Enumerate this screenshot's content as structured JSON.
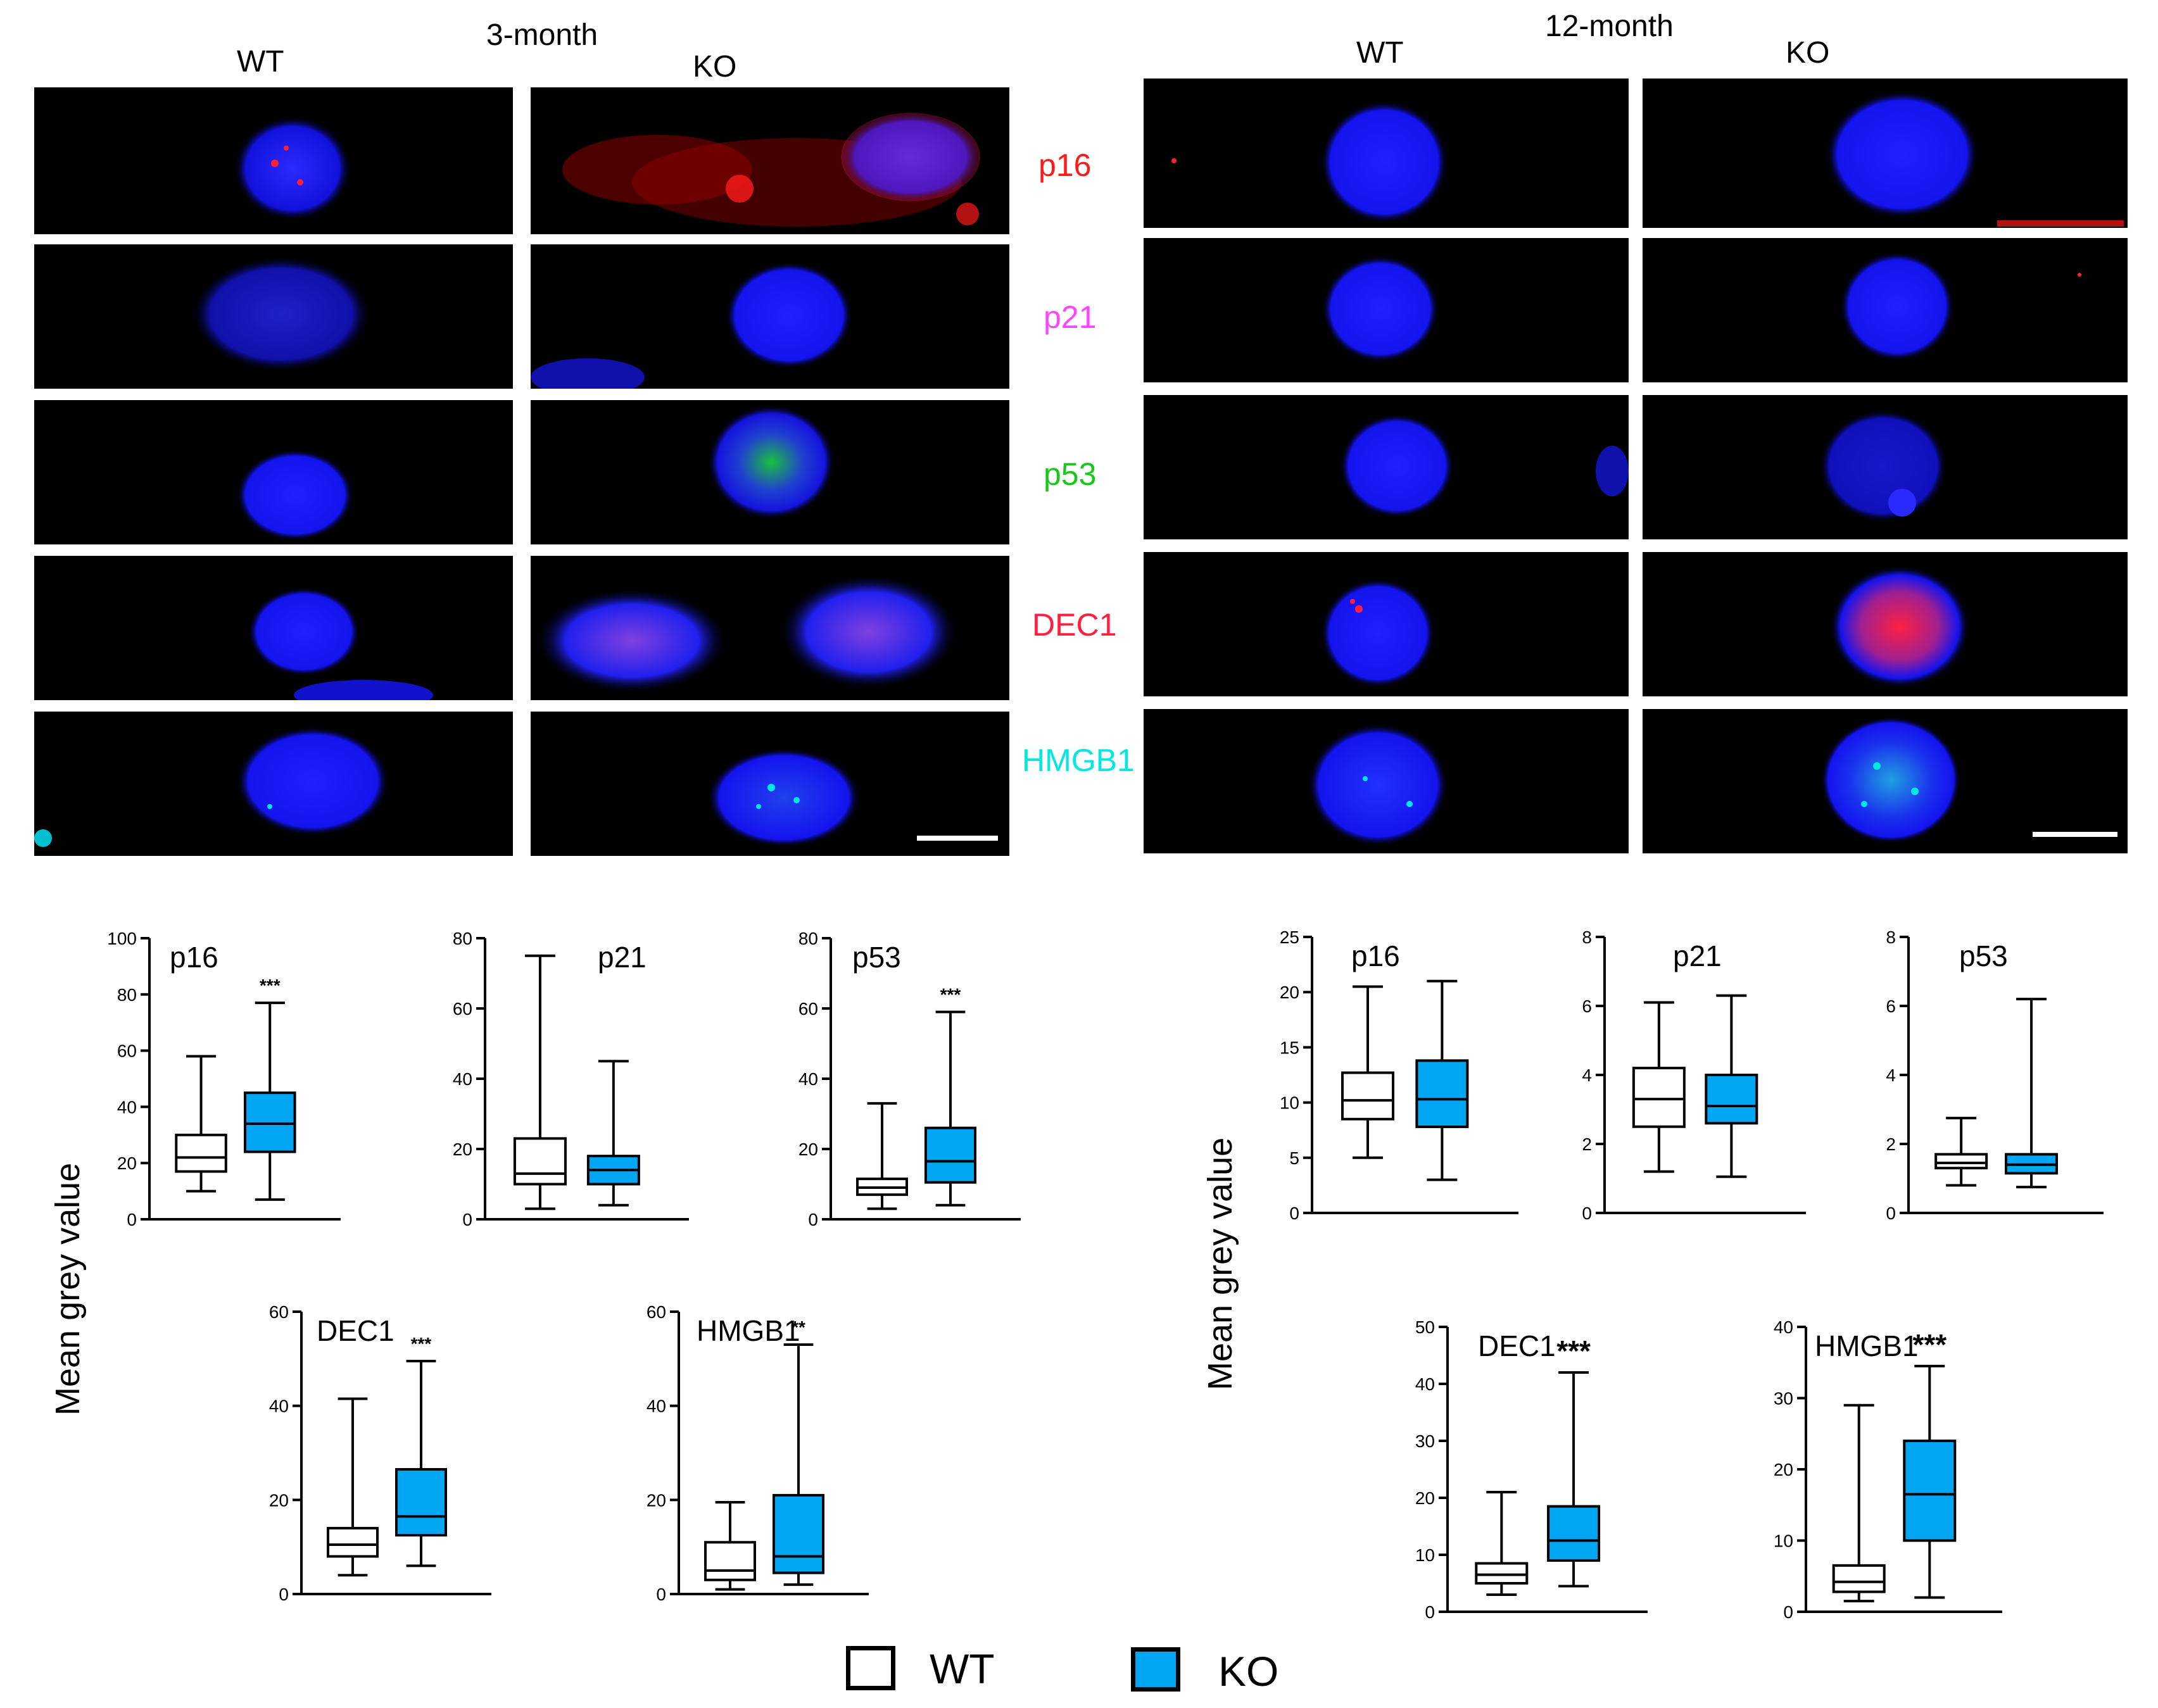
{
  "colors": {
    "wt_fill": "#ffffff",
    "ko_fill": "#00a6f2",
    "nucleus": "#1010ee",
    "p16": "#ff1a1a",
    "p21": "#ff44ff",
    "p53": "#18e018",
    "DEC1": "#ff2040",
    "HMGB1": "#00e8e0"
  },
  "micrographs": {
    "panel_3m": {
      "title": "3-month",
      "wt_label": "WT",
      "ko_label": "KO",
      "markers": [
        "p16",
        "p21",
        "p53",
        "DEC1",
        "HMGB1"
      ]
    },
    "panel_12m": {
      "title": "12-month",
      "wt_label": "WT",
      "ko_label": "KO"
    }
  },
  "y_axis_label_3m": "Mean grey value",
  "y_axis_label_12m": "Mean grey value",
  "legend": {
    "wt": "WT",
    "ko": "KO"
  },
  "chart_data": [
    {
      "type": "box",
      "panel": "3-month",
      "title": "p16",
      "ylim": [
        0,
        100
      ],
      "yticks": [
        0,
        20,
        40,
        60,
        80,
        100
      ],
      "significance": "***",
      "series": [
        {
          "name": "WT",
          "min": 10,
          "q1": 17,
          "median": 22,
          "q3": 30,
          "max": 58
        },
        {
          "name": "KO",
          "min": 7,
          "q1": 24,
          "median": 34,
          "q3": 45,
          "max": 77
        }
      ]
    },
    {
      "type": "box",
      "panel": "3-month",
      "title": "p21",
      "ylim": [
        0,
        80
      ],
      "yticks": [
        0,
        20,
        40,
        60,
        80
      ],
      "significance": "",
      "series": [
        {
          "name": "WT",
          "min": 3,
          "q1": 10,
          "median": 13,
          "q3": 23,
          "max": 75
        },
        {
          "name": "KO",
          "min": 4,
          "q1": 10,
          "median": 14,
          "q3": 18,
          "max": 45
        }
      ]
    },
    {
      "type": "box",
      "panel": "3-month",
      "title": "p53",
      "ylim": [
        0,
        80
      ],
      "yticks": [
        0,
        20,
        40,
        60,
        80
      ],
      "significance": "***",
      "series": [
        {
          "name": "WT",
          "min": 3,
          "q1": 7,
          "median": 9,
          "q3": 11.5,
          "max": 33
        },
        {
          "name": "KO",
          "min": 4,
          "q1": 10.5,
          "median": 16.5,
          "q3": 26,
          "max": 59
        }
      ]
    },
    {
      "type": "box",
      "panel": "3-month",
      "title": "DEC1",
      "ylim": [
        0,
        60
      ],
      "yticks": [
        0,
        20,
        40,
        60
      ],
      "significance": "***",
      "series": [
        {
          "name": "WT",
          "min": 4,
          "q1": 8,
          "median": 10.5,
          "q3": 14,
          "max": 41.5
        },
        {
          "name": "KO",
          "min": 6,
          "q1": 12.5,
          "median": 16.5,
          "q3": 26.5,
          "max": 49.5
        }
      ]
    },
    {
      "type": "box",
      "panel": "3-month",
      "title": "HMGB1",
      "ylim": [
        0,
        60
      ],
      "yticks": [
        0,
        20,
        40,
        60
      ],
      "significance": "**",
      "series": [
        {
          "name": "WT",
          "min": 1,
          "q1": 3,
          "median": 5,
          "q3": 11,
          "max": 19.5
        },
        {
          "name": "KO",
          "min": 2,
          "q1": 4.5,
          "median": 8,
          "q3": 21,
          "max": 53
        }
      ]
    },
    {
      "type": "box",
      "panel": "12-month",
      "title": "p16",
      "ylim": [
        0,
        25
      ],
      "yticks": [
        0,
        5,
        10,
        15,
        20,
        25
      ],
      "significance": "",
      "series": [
        {
          "name": "WT",
          "min": 5,
          "q1": 8.5,
          "median": 10.2,
          "q3": 12.7,
          "max": 20.5
        },
        {
          "name": "KO",
          "min": 3,
          "q1": 7.8,
          "median": 10.3,
          "q3": 13.8,
          "max": 21
        }
      ]
    },
    {
      "type": "box",
      "panel": "12-month",
      "title": "p21",
      "ylim": [
        0,
        8
      ],
      "yticks": [
        0,
        2,
        4,
        6,
        8
      ],
      "significance": "",
      "series": [
        {
          "name": "WT",
          "min": 1.2,
          "q1": 2.5,
          "median": 3.3,
          "q3": 4.2,
          "max": 6.1
        },
        {
          "name": "KO",
          "min": 1.05,
          "q1": 2.6,
          "median": 3.1,
          "q3": 4.0,
          "max": 6.3
        }
      ]
    },
    {
      "type": "box",
      "panel": "12-month",
      "title": "p53",
      "ylim": [
        0,
        8
      ],
      "yticks": [
        0,
        2,
        4,
        6,
        8
      ],
      "significance": "",
      "series": [
        {
          "name": "WT",
          "min": 0.8,
          "q1": 1.3,
          "median": 1.45,
          "q3": 1.7,
          "max": 2.75
        },
        {
          "name": "KO",
          "min": 0.75,
          "q1": 1.15,
          "median": 1.4,
          "q3": 1.7,
          "max": 6.2
        }
      ]
    },
    {
      "type": "box",
      "panel": "12-month",
      "title": "DEC1",
      "ylim": [
        0,
        50
      ],
      "yticks": [
        0,
        10,
        20,
        30,
        40,
        50
      ],
      "significance": "***",
      "series": [
        {
          "name": "WT",
          "min": 3,
          "q1": 5,
          "median": 6.5,
          "q3": 8.5,
          "max": 21
        },
        {
          "name": "KO",
          "min": 4.5,
          "q1": 9,
          "median": 12.5,
          "q3": 18.5,
          "max": 42
        }
      ]
    },
    {
      "type": "box",
      "panel": "12-month",
      "title": "HMGB1",
      "ylim": [
        0,
        40
      ],
      "yticks": [
        0,
        10,
        20,
        30,
        40
      ],
      "significance": "***",
      "series": [
        {
          "name": "WT",
          "min": 1.5,
          "q1": 2.8,
          "median": 4.2,
          "q3": 6.5,
          "max": 29
        },
        {
          "name": "KO",
          "min": 2,
          "q1": 10,
          "median": 16.5,
          "q3": 24,
          "max": 34.5
        }
      ]
    }
  ]
}
